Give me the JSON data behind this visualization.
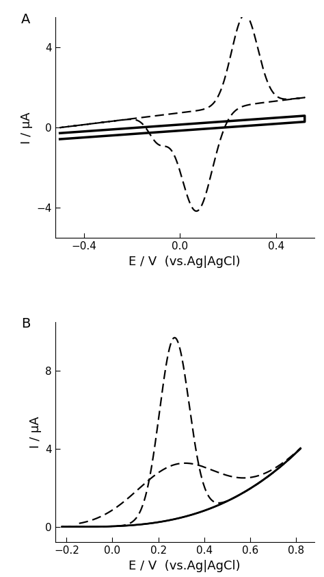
{
  "panel_A": {
    "label": "A",
    "xlim": [
      -0.52,
      0.56
    ],
    "ylim": [
      -5.5,
      5.5
    ],
    "xticks": [
      -0.4,
      0.0,
      0.4
    ],
    "yticks": [
      -4,
      0,
      4
    ],
    "xlabel": "E / V  (vs.Ag|AgCl)",
    "ylabel": "I / μA"
  },
  "panel_B": {
    "label": "B",
    "xlim": [
      -0.25,
      0.88
    ],
    "ylim": [
      -0.8,
      10.5
    ],
    "xticks": [
      -0.2,
      0.0,
      0.2,
      0.4,
      0.6,
      0.8
    ],
    "yticks": [
      0,
      4,
      8
    ],
    "xlabel": "E / V  (vs.Ag|AgCl)",
    "ylabel": "I / μA"
  },
  "line_color": "#000000",
  "background_color": "#ffffff",
  "fontsize_label": 13,
  "fontsize_tick": 11,
  "fontsize_panel_label": 14
}
